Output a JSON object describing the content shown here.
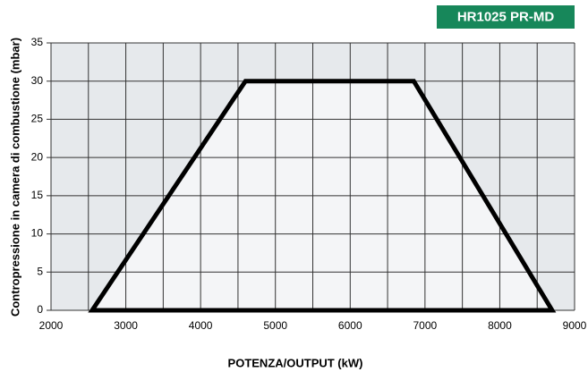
{
  "chart_data": {
    "type": "area",
    "badge": "HR1025 PR-MD",
    "xlabel": "POTENZA/OUTPUT (kW)",
    "ylabel": "Contropressione in camera di combustione (mbar)",
    "x": [
      2550,
      4600,
      6850,
      8700
    ],
    "series": [
      {
        "color": "#000000",
        "fill": "#f4f5f7",
        "values": [
          0,
          30,
          30,
          0
        ]
      }
    ],
    "xlim": [
      2000,
      9000
    ],
    "xticks": [
      2000,
      3000,
      4000,
      5000,
      6000,
      7000,
      8000,
      9000
    ],
    "xminorticks": [
      2500,
      3500,
      4500,
      5500,
      6500,
      7500,
      8500
    ],
    "ylim": [
      0,
      35
    ],
    "yticks": [
      0,
      5,
      10,
      15,
      20,
      25,
      30,
      35
    ],
    "grid": true,
    "background": "#e6e9ec",
    "badge_color": "#17875a"
  }
}
